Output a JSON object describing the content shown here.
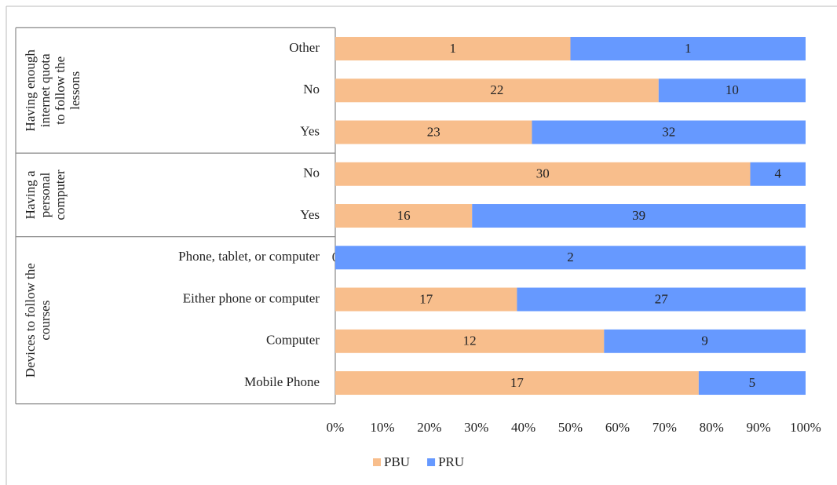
{
  "chart_data": {
    "type": "bar",
    "orientation": "horizontal",
    "stacked": "percent",
    "groups": [
      {
        "name": [
          "Having enough",
          "internet quota",
          "to follow the",
          "lessons"
        ],
        "categories": [
          "Other",
          "No",
          "Yes"
        ]
      },
      {
        "name": [
          "Having a",
          "personal",
          "computer"
        ],
        "categories": [
          "No",
          "Yes"
        ]
      },
      {
        "name": [
          "Devices to follow the",
          "courses"
        ],
        "categories": [
          "Phone, tablet, or computer",
          "Either phone or computer",
          "Computer",
          "Mobile Phone"
        ]
      }
    ],
    "series": [
      {
        "name": "PBU",
        "color": "#f8be8c",
        "values": [
          1,
          22,
          23,
          30,
          16,
          0,
          17,
          12,
          17
        ]
      },
      {
        "name": "PRU",
        "color": "#6699ff",
        "values": [
          1,
          10,
          32,
          4,
          39,
          2,
          27,
          9,
          5
        ]
      }
    ],
    "xlim": [
      0,
      100
    ],
    "xticks": [
      {
        "value": 0,
        "label": "0%"
      },
      {
        "value": 10,
        "label": "10%"
      },
      {
        "value": 20,
        "label": "20%"
      },
      {
        "value": 30,
        "label": "30%"
      },
      {
        "value": 40,
        "label": "40%"
      },
      {
        "value": 50,
        "label": "50%"
      },
      {
        "value": 60,
        "label": "60%"
      },
      {
        "value": 70,
        "label": "70%"
      },
      {
        "value": 80,
        "label": "80%"
      },
      {
        "value": 90,
        "label": "90%"
      },
      {
        "value": 100,
        "label": "100%"
      }
    ],
    "legend": "bottom"
  }
}
